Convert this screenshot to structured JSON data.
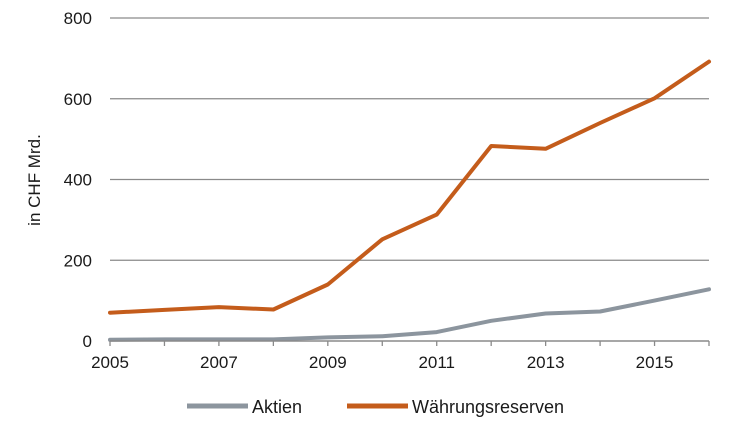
{
  "chart_data": {
    "type": "line",
    "title": "",
    "xlabel": "",
    "ylabel": "in CHF Mrd.",
    "xlim": [
      2005,
      2016
    ],
    "ylim": [
      0,
      800
    ],
    "x_ticks": [
      2005,
      2007,
      2009,
      2011,
      2013,
      2015
    ],
    "y_ticks": [
      0,
      200,
      400,
      600,
      800
    ],
    "grid": "horizontal",
    "legend_position": "bottom",
    "x": [
      2005,
      2006,
      2007,
      2008,
      2009,
      2010,
      2011,
      2012,
      2013,
      2014,
      2015,
      2016
    ],
    "series": [
      {
        "name": "Aktien",
        "color": "#8c959e",
        "values": [
          3,
          4,
          4,
          4,
          9,
          12,
          22,
          50,
          68,
          73,
          100,
          128
        ]
      },
      {
        "name": "Währungsreserven",
        "color": "#c45c1b",
        "values": [
          70,
          77,
          84,
          78,
          140,
          252,
          313,
          483,
          476,
          540,
          601,
          692
        ]
      }
    ]
  }
}
